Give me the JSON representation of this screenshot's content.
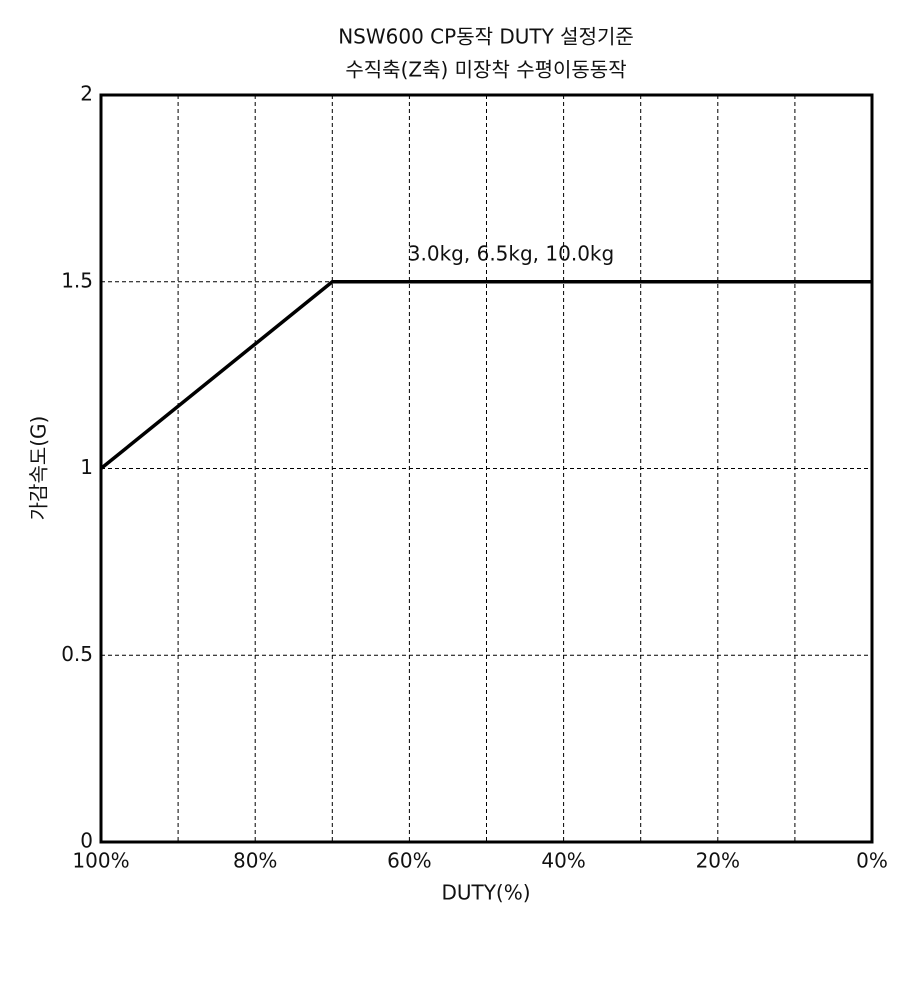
{
  "chart_data": {
    "type": "line",
    "title": "NSW600 CP동작 DUTY 설정기준",
    "subtitle": "수직축(Z축) 미장착 수평이동동작",
    "x_label": "DUTY(%)",
    "y_label": "가감속도(G)",
    "annotation": "3.0kg, 6.5kg, 10.0kg",
    "x": [
      100,
      70,
      0
    ],
    "values": [
      1,
      1.5,
      1.5
    ],
    "color": "#000000",
    "xlim": [
      100,
      0
    ],
    "xticks": [
      {
        "value": 100,
        "label": "100%"
      },
      {
        "value": 80,
        "label": "80%"
      },
      {
        "value": 60,
        "label": "60%"
      },
      {
        "value": 40,
        "label": "40%"
      },
      {
        "value": 20,
        "label": "20%"
      },
      {
        "value": 0,
        "label": "0%"
      }
    ],
    "xgrid": [
      90,
      70,
      50,
      30,
      10
    ],
    "ylim": [
      0,
      2
    ],
    "yticks": [
      0,
      0.5,
      1,
      1.5,
      2
    ],
    "grid": true
  }
}
